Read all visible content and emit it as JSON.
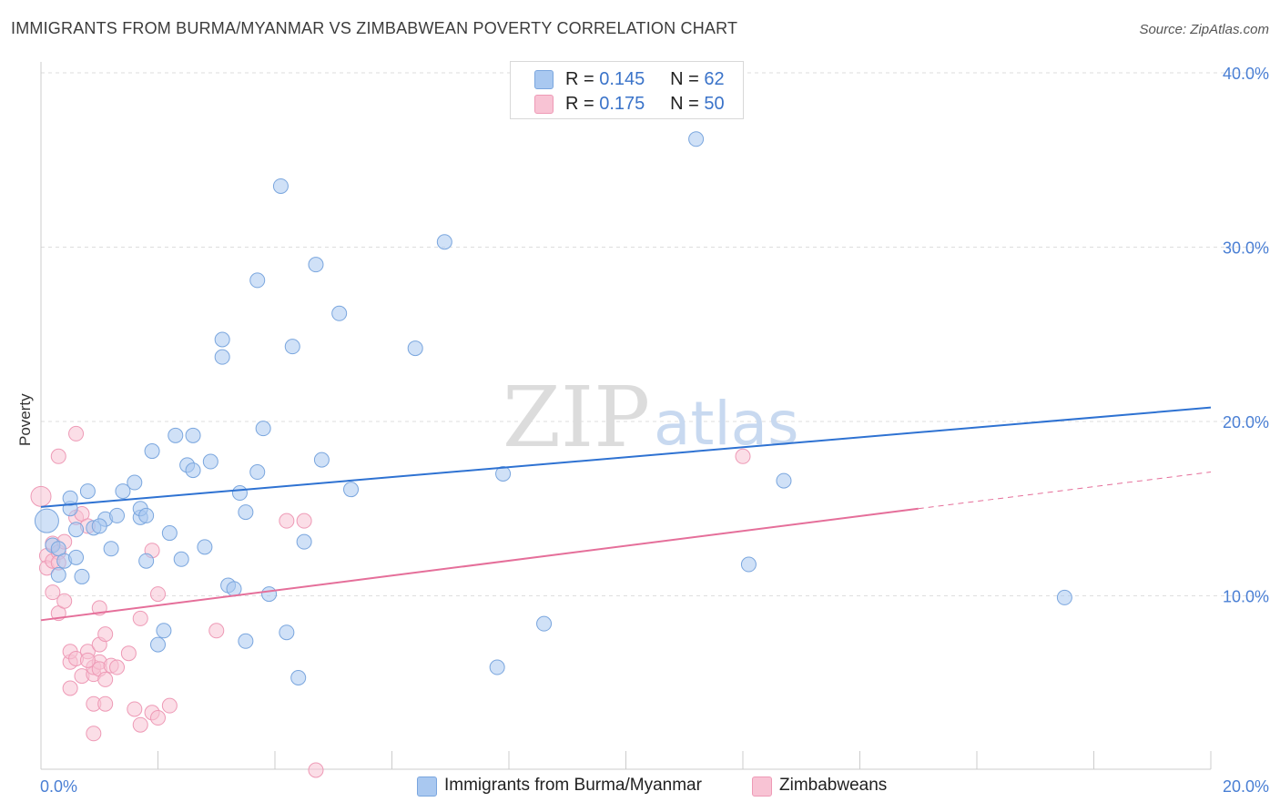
{
  "title": "IMMIGRANTS FROM BURMA/MYANMAR VS ZIMBABWEAN POVERTY CORRELATION CHART",
  "source": "Source: ZipAtlas.com",
  "watermark": {
    "zip": "ZIP",
    "atlas": "atlas"
  },
  "legend": {
    "rows": [
      {
        "r_label": "R =",
        "r_value": "0.145",
        "n_label": "N =",
        "n_value": "62",
        "color": "#a9c8f0",
        "border": "#7aa6de"
      },
      {
        "r_label": "R =",
        "r_value": "0.175",
        "n_label": "N =",
        "n_value": "50",
        "color": "#f8c3d4",
        "border": "#ee9ab6"
      }
    ]
  },
  "bottom_legend": [
    {
      "label": "Immigrants from Burma/Myanmar",
      "color": "#a9c8f0",
      "border": "#7aa6de"
    },
    {
      "label": "Zimbabweans",
      "color": "#f8c3d4",
      "border": "#ee9ab6"
    }
  ],
  "chart_data": {
    "type": "scatter",
    "title": "IMMIGRANTS FROM BURMA/MYANMAR VS ZIMBABWEAN POVERTY CORRELATION CHART",
    "xlabel": "",
    "ylabel": "Poverty",
    "xlim": [
      0,
      20
    ],
    "ylim": [
      0,
      40
    ],
    "x_tick_labels": [
      "0.0%",
      "20.0%"
    ],
    "y_ticks": [
      10,
      20,
      30,
      40
    ],
    "y_tick_labels": [
      "10.0%",
      "20.0%",
      "30.0%",
      "40.0%"
    ],
    "grid": true,
    "series": [
      {
        "name": "Immigrants from Burma/Myanmar",
        "color": "#7aa6de",
        "fill": "#a9c8f0",
        "trend_color": "#2e72d2",
        "trend": {
          "x": [
            0,
            20
          ],
          "y": [
            15.1,
            20.8
          ]
        },
        "points": [
          [
            0.1,
            14.3
          ],
          [
            0.2,
            12.9
          ],
          [
            0.3,
            12.7
          ],
          [
            0.3,
            11.2
          ],
          [
            0.4,
            12.0
          ],
          [
            0.5,
            15.0
          ],
          [
            0.5,
            15.6
          ],
          [
            0.6,
            13.8
          ],
          [
            0.7,
            11.1
          ],
          [
            0.8,
            16.0
          ],
          [
            0.9,
            13.9
          ],
          [
            1.1,
            14.4
          ],
          [
            1.2,
            12.7
          ],
          [
            1.3,
            14.6
          ],
          [
            1.4,
            16.0
          ],
          [
            1.6,
            16.5
          ],
          [
            1.7,
            14.5
          ],
          [
            1.7,
            15.0
          ],
          [
            1.8,
            14.6
          ],
          [
            1.8,
            12.0
          ],
          [
            1.9,
            18.3
          ],
          [
            2.1,
            8.0
          ],
          [
            2.0,
            7.2
          ],
          [
            2.2,
            13.6
          ],
          [
            2.3,
            19.2
          ],
          [
            2.4,
            12.1
          ],
          [
            2.5,
            17.5
          ],
          [
            2.6,
            19.2
          ],
          [
            2.6,
            17.2
          ],
          [
            2.8,
            12.8
          ],
          [
            2.9,
            17.7
          ],
          [
            3.1,
            24.7
          ],
          [
            3.1,
            23.7
          ],
          [
            3.2,
            10.6
          ],
          [
            3.3,
            10.4
          ],
          [
            3.4,
            15.9
          ],
          [
            3.5,
            14.8
          ],
          [
            3.5,
            7.4
          ],
          [
            3.7,
            17.1
          ],
          [
            3.7,
            28.1
          ],
          [
            3.8,
            19.6
          ],
          [
            3.9,
            10.1
          ],
          [
            4.1,
            33.5
          ],
          [
            4.2,
            7.9
          ],
          [
            4.3,
            24.3
          ],
          [
            4.4,
            5.3
          ],
          [
            4.5,
            13.1
          ],
          [
            4.7,
            29.0
          ],
          [
            4.8,
            17.8
          ],
          [
            5.1,
            26.2
          ],
          [
            5.3,
            16.1
          ],
          [
            6.4,
            24.2
          ],
          [
            6.9,
            30.3
          ],
          [
            7.8,
            5.9
          ],
          [
            7.9,
            17.0
          ],
          [
            8.6,
            8.4
          ],
          [
            11.2,
            36.2
          ],
          [
            12.1,
            11.8
          ],
          [
            12.7,
            16.6
          ],
          [
            17.5,
            9.9
          ],
          [
            0.6,
            12.2
          ],
          [
            1.0,
            14.0
          ]
        ]
      },
      {
        "name": "Zimbabweans",
        "color": "#ee9ab6",
        "fill": "#f8c3d4",
        "trend_color": "#e56f9a",
        "trend": {
          "x": [
            0,
            15.0
          ],
          "y": [
            8.6,
            15.0
          ]
        },
        "trend_dashed": {
          "x": [
            15.0,
            20
          ],
          "y": [
            15.0,
            17.1
          ]
        },
        "points": [
          [
            0.0,
            15.7
          ],
          [
            0.1,
            12.3
          ],
          [
            0.1,
            11.6
          ],
          [
            0.2,
            13.0
          ],
          [
            0.2,
            12.0
          ],
          [
            0.2,
            10.2
          ],
          [
            0.3,
            12.5
          ],
          [
            0.3,
            11.9
          ],
          [
            0.3,
            9.0
          ],
          [
            0.4,
            13.1
          ],
          [
            0.3,
            18.0
          ],
          [
            0.4,
            9.7
          ],
          [
            0.5,
            6.2
          ],
          [
            0.5,
            4.7
          ],
          [
            0.5,
            6.8
          ],
          [
            0.6,
            19.3
          ],
          [
            0.6,
            14.5
          ],
          [
            0.6,
            6.4
          ],
          [
            0.7,
            5.4
          ],
          [
            0.7,
            14.7
          ],
          [
            0.8,
            6.8
          ],
          [
            0.8,
            14.0
          ],
          [
            0.9,
            5.5
          ],
          [
            0.9,
            5.9
          ],
          [
            1.0,
            6.2
          ],
          [
            1.0,
            5.8
          ],
          [
            0.9,
            3.8
          ],
          [
            0.9,
            2.1
          ],
          [
            1.0,
            7.2
          ],
          [
            1.0,
            9.3
          ],
          [
            1.1,
            5.2
          ],
          [
            1.1,
            7.8
          ],
          [
            1.1,
            3.8
          ],
          [
            1.2,
            6.0
          ],
          [
            1.3,
            5.9
          ],
          [
            1.5,
            6.7
          ],
          [
            1.6,
            3.5
          ],
          [
            1.7,
            8.7
          ],
          [
            1.7,
            2.6
          ],
          [
            1.9,
            12.6
          ],
          [
            1.9,
            3.3
          ],
          [
            2.0,
            3.0
          ],
          [
            2.0,
            10.1
          ],
          [
            2.2,
            3.7
          ],
          [
            3.0,
            8.0
          ],
          [
            4.2,
            14.3
          ],
          [
            4.5,
            14.3
          ],
          [
            4.7,
            0.0
          ],
          [
            12.0,
            18.0
          ],
          [
            0.8,
            6.3
          ]
        ]
      }
    ]
  }
}
